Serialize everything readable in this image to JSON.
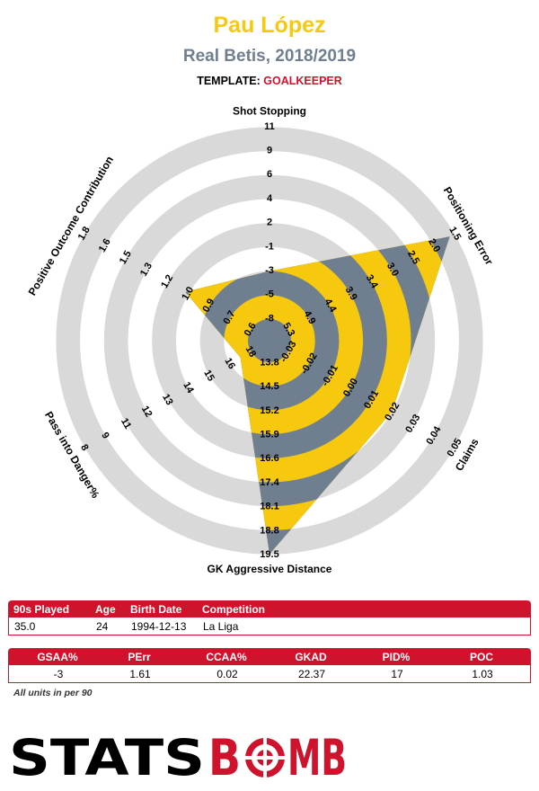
{
  "header": {
    "title": "Pau López",
    "subtitle": "Real Betis, 2018/2019",
    "template_label": "TEMPLATE:",
    "template_value": "GOALKEEPER"
  },
  "colors": {
    "accent_yellow": "#f6c90e",
    "ring_gray": "#d9d9d9",
    "polygon_slate": "#6f7f8f",
    "brand_red": "#d0132c"
  },
  "chart_data": {
    "type": "radar",
    "rings": 5,
    "axes": [
      {
        "name": "Shot Stopping",
        "ticks": [
          "-8",
          "-5",
          "-3",
          "-1",
          "2",
          "4",
          "6",
          "9",
          "11"
        ],
        "value": -3
      },
      {
        "name": "Positioning Error",
        "ticks": [
          "5.3",
          "4.9",
          "4.4",
          "3.9",
          "3.4",
          "3.0",
          "2.5",
          "2.0",
          "1.5"
        ],
        "value": 1.61
      },
      {
        "name": "Claims",
        "ticks": [
          "-0.03",
          "-0.02",
          "-0.01",
          "0.00",
          "0.01",
          "0.02",
          "0.03",
          "0.04",
          "0.05"
        ],
        "value": 0.02
      },
      {
        "name": "GK Aggressive Distance",
        "ticks": [
          "13.8",
          "14.5",
          "15.2",
          "15.9",
          "16.6",
          "17.4",
          "18.1",
          "18.8",
          "19.5"
        ],
        "value": 22.37
      },
      {
        "name": "Pass into Danger%",
        "ticks": [
          "18",
          "16",
          "15",
          "14",
          "13",
          "12",
          "11",
          "9",
          "8"
        ],
        "value": 17
      },
      {
        "name": "Positive Outcome Contribution",
        "ticks": [
          "0.6",
          "0.7",
          "0.9",
          "1.0",
          "1.2",
          "1.3",
          "1.5",
          "1.6",
          "1.8"
        ],
        "value": 1.03
      }
    ]
  },
  "info_table": {
    "headers": [
      "90s Played",
      "Age",
      "Birth Date",
      "Competition"
    ],
    "values": [
      "35.0",
      "24",
      "1994-12-13",
      "La Liga"
    ]
  },
  "stats_table": {
    "headers": [
      "GSAA%",
      "PErr",
      "CCAA%",
      "GKAD",
      "PID%",
      "POC"
    ],
    "values": [
      "-3",
      "1.61",
      "0.02",
      "22.37",
      "17",
      "1.03"
    ]
  },
  "footnote": "All units in per 90",
  "logo": {
    "part1": "STATS",
    "part2": "B",
    "part3": "MB"
  }
}
